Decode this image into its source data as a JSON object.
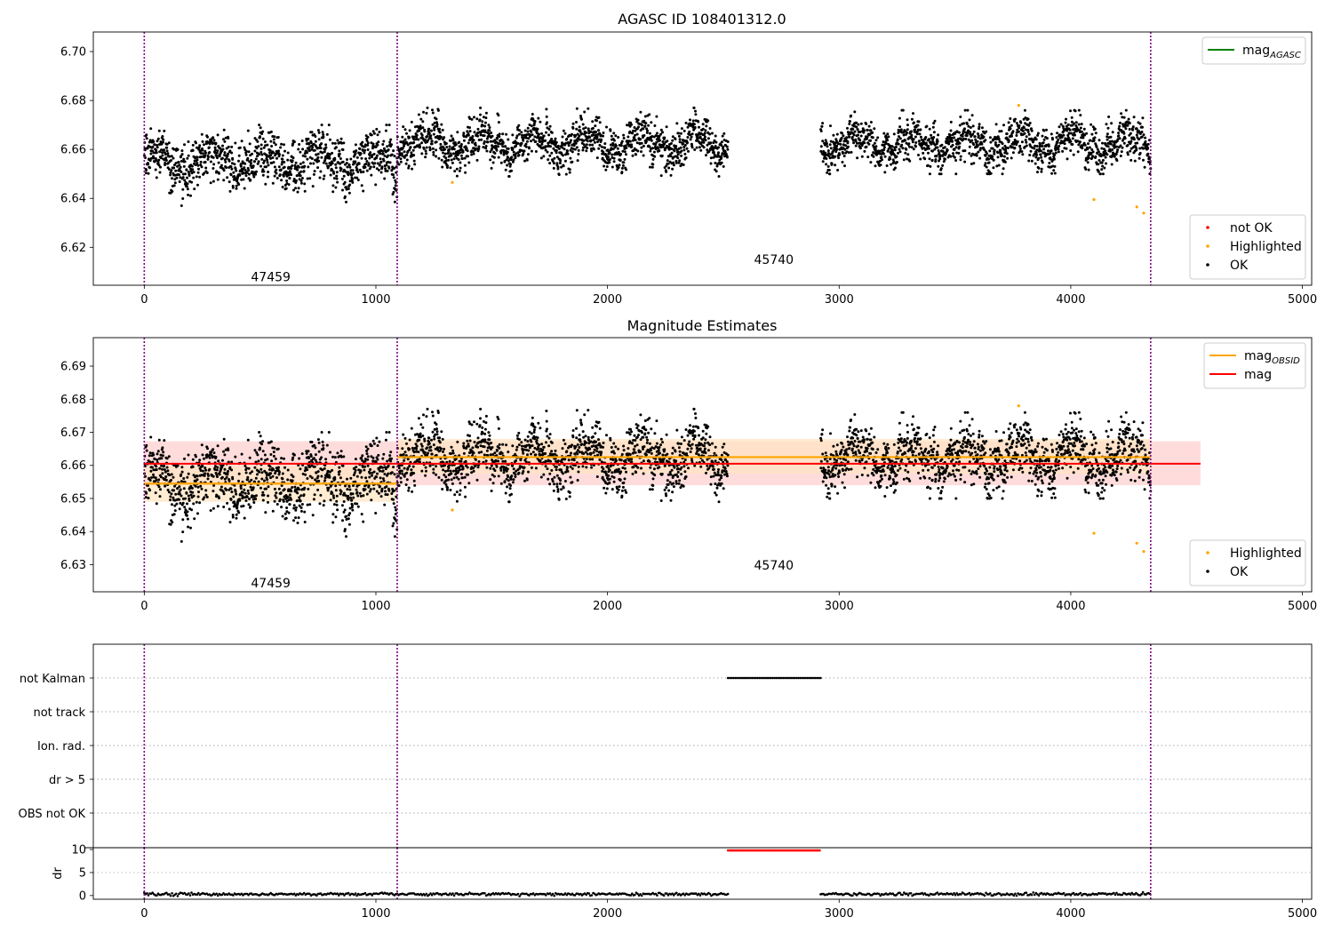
{
  "colors": {
    "ok": "#000000",
    "highlighted": "#ffa500",
    "not_ok": "#ff0000",
    "mag_agasc": "#008000",
    "mag_obsid": "#ffa500",
    "mag": "#ff0000",
    "obsid_boundary": "#800080",
    "mag_band": "#ffd0d0",
    "obsid_band": "#ffe4c0"
  },
  "chart_data": [
    {
      "type": "scatter",
      "title": "AGASC ID 108401312.0",
      "xlim": [
        -220,
        5040
      ],
      "ylim": [
        6.6045,
        6.708
      ],
      "xticks": [
        0,
        1000,
        2000,
        3000,
        4000,
        5000
      ],
      "xtick_labels": [
        "0",
        "1000",
        "2000",
        "3000",
        "4000",
        "5000"
      ],
      "yticks": [
        6.62,
        6.64,
        6.66,
        6.68,
        6.7
      ],
      "ytick_labels": [
        "6.62",
        "6.64",
        "6.66",
        "6.68",
        "6.70"
      ],
      "obsid_boundaries": [
        0,
        1092,
        4345
      ],
      "obsid_labels": [
        {
          "text": "47459",
          "x": 546,
          "y": 6.608
        },
        {
          "text": "45740",
          "x": 2718,
          "y": 6.615
        }
      ],
      "segments": [
        {
          "x_start": 0,
          "x_end": 1092,
          "mean": 6.655,
          "sigma": 0.0065,
          "min": 6.637,
          "max": 6.67
        },
        {
          "x_start": 1092,
          "x_end": 2520,
          "mean": 6.6625,
          "sigma": 0.0052,
          "min": 6.649,
          "max": 6.677
        },
        {
          "x_start": 2920,
          "x_end": 4345,
          "mean": 6.6625,
          "sigma": 0.0052,
          "min": 6.65,
          "max": 6.676
        }
      ],
      "highlighted_points": [
        [
          1330,
          6.6465
        ],
        [
          3775,
          6.678
        ],
        [
          4100,
          6.6395
        ],
        [
          4285,
          6.6365
        ],
        [
          4315,
          6.634
        ]
      ],
      "legends": [
        {
          "position": "upper-right",
          "entries": [
            {
              "label": "mag",
              "subscript": "AGASC",
              "kind": "line",
              "color": "#008000"
            }
          ]
        },
        {
          "position": "lower-right",
          "entries": [
            {
              "label": "not OK",
              "kind": "dot",
              "color": "#ff0000"
            },
            {
              "label": "Highlighted",
              "kind": "dot",
              "color": "#ffa500"
            },
            {
              "label": "OK",
              "kind": "dot",
              "color": "#000000"
            }
          ]
        }
      ]
    },
    {
      "type": "scatter",
      "title": "Magnitude Estimates",
      "xlim": [
        -220,
        5040
      ],
      "ylim": [
        6.6218,
        6.6986
      ],
      "xticks": [
        0,
        1000,
        2000,
        3000,
        4000,
        5000
      ],
      "xtick_labels": [
        "0",
        "1000",
        "2000",
        "3000",
        "4000",
        "5000"
      ],
      "yticks": [
        6.63,
        6.64,
        6.65,
        6.66,
        6.67,
        6.68,
        6.69
      ],
      "ytick_labels": [
        "6.63",
        "6.64",
        "6.65",
        "6.66",
        "6.67",
        "6.68",
        "6.69"
      ],
      "obsid_boundaries": [
        0,
        1092,
        4345
      ],
      "obsid_labels": [
        {
          "text": "47459",
          "x": 546,
          "y": 6.6245
        },
        {
          "text": "45740",
          "x": 2718,
          "y": 6.6299
        }
      ],
      "mag": {
        "value": 6.6605,
        "band": [
          6.654,
          6.6673
        ],
        "x_start": 0,
        "x_end": 4560
      },
      "mag_obsid": [
        {
          "x_start": 0,
          "x_end": 1092,
          "value": 6.6545,
          "band": [
            6.649,
            6.66
          ]
        },
        {
          "x_start": 1092,
          "x_end": 4345,
          "value": 6.6625,
          "band": [
            6.6575,
            6.668
          ]
        }
      ],
      "highlighted_points": [
        [
          1330,
          6.6465
        ],
        [
          3775,
          6.678
        ],
        [
          4100,
          6.6395
        ],
        [
          4285,
          6.6365
        ],
        [
          4315,
          6.634
        ]
      ],
      "legends": [
        {
          "position": "upper-right",
          "entries": [
            {
              "label": "mag",
              "subscript": "OBSID",
              "kind": "line",
              "color": "#ffa500"
            },
            {
              "label": "mag",
              "kind": "line",
              "color": "#ff0000"
            }
          ]
        },
        {
          "position": "lower-right",
          "entries": [
            {
              "label": "Highlighted",
              "kind": "dot",
              "color": "#ffa500"
            },
            {
              "label": "OK",
              "kind": "dot",
              "color": "#000000"
            }
          ]
        }
      ]
    },
    {
      "type": "scatter",
      "title": "",
      "xlim": [
        -220,
        5040
      ],
      "categories": [
        "not Kalman",
        "not track",
        "Ion. rad.",
        "dr > 5",
        "OBS not OK"
      ],
      "flag_segments": [
        {
          "category": "not Kalman",
          "x_start": 2520,
          "x_end": 2920
        }
      ],
      "obsid_boundaries": [
        0,
        1092,
        4345
      ]
    },
    {
      "type": "scatter",
      "title": "",
      "ylabel": "dr",
      "xlim": [
        -220,
        5040
      ],
      "ylim": [
        -0.8,
        10.4
      ],
      "xticks": [
        0,
        1000,
        2000,
        3000,
        4000,
        5000
      ],
      "xtick_labels": [
        "0",
        "1000",
        "2000",
        "3000",
        "4000",
        "5000"
      ],
      "yticks": [
        0,
        5,
        10
      ],
      "ytick_labels": [
        "0",
        "5",
        "10"
      ],
      "obsid_boundaries": [
        0,
        1092,
        4345
      ],
      "dr_segments": [
        {
          "x_start": 0,
          "x_end": 2520,
          "value": 0.3,
          "color": "#000000"
        },
        {
          "x_start": 2520,
          "x_end": 2920,
          "value": 9.8,
          "color": "#ff0000"
        },
        {
          "x_start": 2920,
          "x_end": 4345,
          "value": 0.3,
          "color": "#000000"
        }
      ]
    }
  ]
}
